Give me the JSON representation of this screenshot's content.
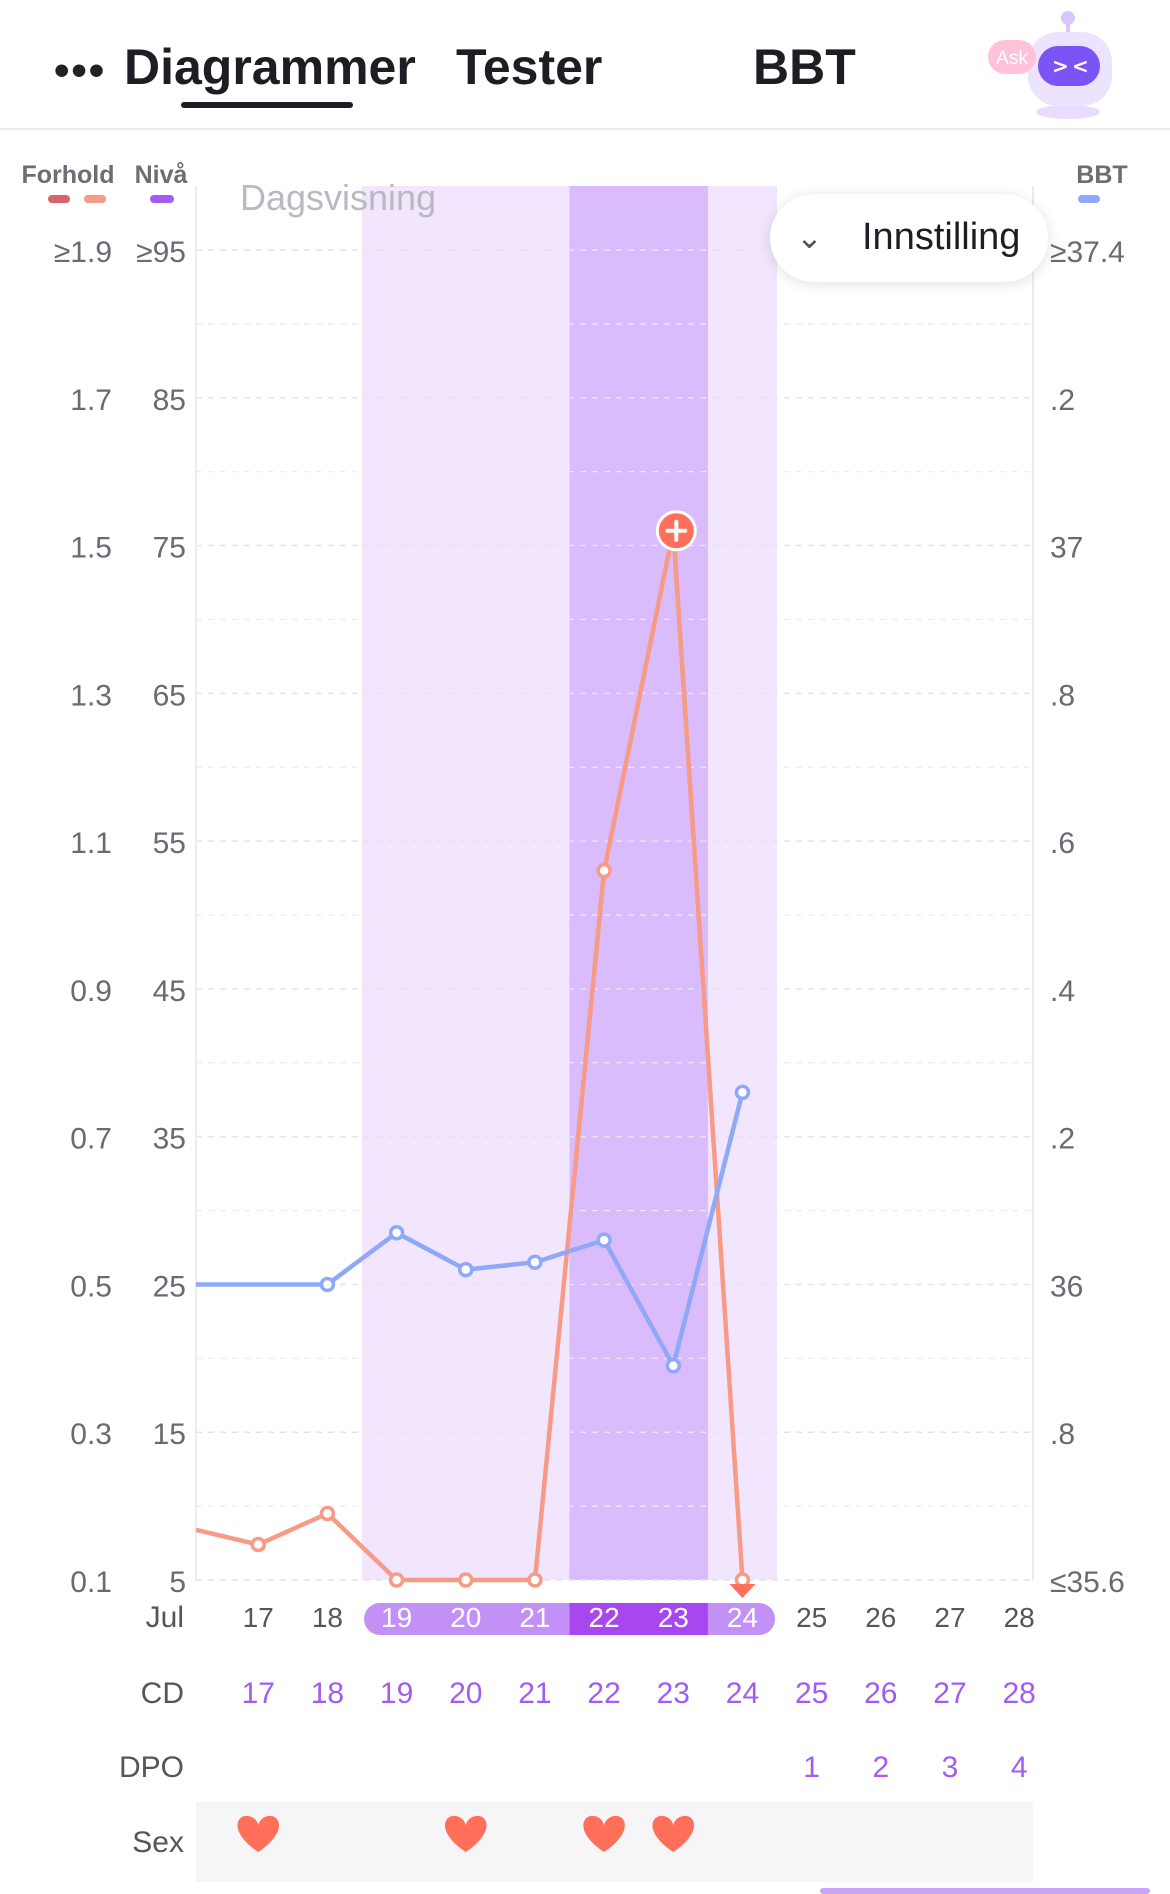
{
  "header": {
    "more_label": "•••",
    "tabs": [
      {
        "label": "Diagrammer",
        "active": true
      },
      {
        "label": "Tester",
        "active": false
      },
      {
        "label": "BBT",
        "active": false
      }
    ],
    "ask_badge": "Ask",
    "ask_icon": "robot-assistant-icon"
  },
  "settings": {
    "label": "Innstilling",
    "icon": "chevron-down-icon"
  },
  "chart_data": {
    "type": "line",
    "view_label": "Dagsvisning",
    "month_label": "Jul",
    "legend": [
      {
        "label": "Forhold",
        "colors": [
          "#d9636a",
          "#f79a86"
        ]
      },
      {
        "label": "Nivå",
        "colors": [
          "#a35cf0"
        ]
      },
      {
        "label": "BBT",
        "colors": [
          "#8fa8f7"
        ]
      }
    ],
    "left_axis_ratio_ticks": [
      "≥1.9",
      "1.7",
      "1.5",
      "1.3",
      "1.1",
      "0.9",
      "0.7",
      "0.5",
      "0.3",
      "0.1"
    ],
    "left_axis_level_ticks": [
      "≥95",
      "85",
      "75",
      "65",
      "55",
      "45",
      "35",
      "25",
      "15",
      "5"
    ],
    "right_axis_ticks": [
      "≥37.4",
      ".2",
      "37",
      ".8",
      ".6",
      ".4",
      ".2",
      "36",
      ".8",
      "≤35.6"
    ],
    "ylim_level": [
      5,
      95
    ],
    "ylim_bbt": [
      35.6,
      37.4
    ],
    "x": [
      17,
      18,
      19,
      20,
      21,
      22,
      23,
      24,
      25,
      26,
      27,
      28
    ],
    "xlim": [
      16.1,
      28.2
    ],
    "highlighted_dates": [
      19,
      20,
      21,
      22,
      23,
      24
    ],
    "peak_dates": [
      22,
      23
    ],
    "fertile_range": [
      19,
      24
    ],
    "peak_range": [
      22,
      23
    ],
    "series": [
      {
        "color": "#f79a86",
        "points": [
          {
            "x": 16.1,
            "y": 8.4
          },
          {
            "x": 17,
            "y": 7.4
          },
          {
            "x": 18,
            "y": 9.5
          },
          {
            "x": 19,
            "y": 5
          },
          {
            "x": 20,
            "y": 5
          },
          {
            "x": 21,
            "y": 5
          },
          {
            "x": 22,
            "y": 53
          },
          {
            "x": 23,
            "y": 76
          },
          {
            "x": 24,
            "y": 5
          }
        ],
        "peak_marker": {
          "x": 23,
          "y": 76
        },
        "end_marker": {
          "x": 24,
          "y": 5
        }
      },
      {
        "color": "#8fa8f7",
        "points": [
          {
            "x": 16.1,
            "y": 36.0
          },
          {
            "x": 18,
            "y": 36.0
          },
          {
            "x": 19,
            "y": 36.07
          },
          {
            "x": 20,
            "y": 36.02
          },
          {
            "x": 21,
            "y": 36.03
          },
          {
            "x": 22,
            "y": 36.06
          },
          {
            "x": 23,
            "y": 35.89
          },
          {
            "x": 24,
            "y": 36.26
          }
        ]
      }
    ],
    "rows": [
      {
        "label": "CD",
        "values": [
          "17",
          "18",
          "19",
          "20",
          "21",
          "22",
          "23",
          "24",
          "25",
          "26",
          "27",
          "28"
        ]
      },
      {
        "label": "DPO",
        "values": [
          "",
          "",
          "",
          "",
          "",
          "",
          "",
          "",
          "1",
          "2",
          "3",
          "4"
        ]
      },
      {
        "label": "Sex",
        "hearts": [
          17,
          20,
          22,
          23
        ]
      }
    ],
    "grid": true,
    "colors": {
      "fertile_band": "#f1e6fd",
      "peak_band": "#dabbfb",
      "date_pill": "#c391f6",
      "date_pill_peak": "#a847f0",
      "row_text": "#a35cf0",
      "heart": "#ff6f59"
    }
  }
}
